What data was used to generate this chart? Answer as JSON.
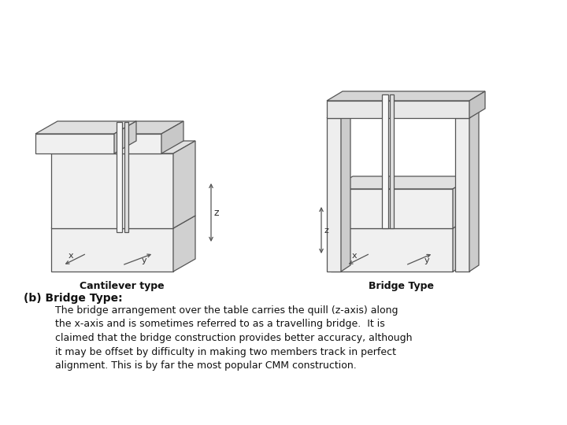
{
  "bg_color": "#ffffff",
  "label_cantilever": "Cantilever type",
  "label_bridge": "Bridge Type",
  "heading": "(b) Bridge Type:",
  "body_text": "The bridge arrangement over the table carries the quill (z-axis) along\nthe x-axis and is sometimes referred to as a travelling bridge.  It is\nclaimed that the bridge construction provides better accuracy, although\nit may be offset by difficulty in making two members track in perfect\nalignment. This is by far the most popular CMM construction.",
  "fig_width": 7.2,
  "fig_height": 5.4,
  "dpi": 100,
  "lc": "#555555",
  "lw": 0.9,
  "fc_front": "#f0f0f0",
  "fc_top": "#e0e0e0",
  "fc_right": "#d0d0d0"
}
